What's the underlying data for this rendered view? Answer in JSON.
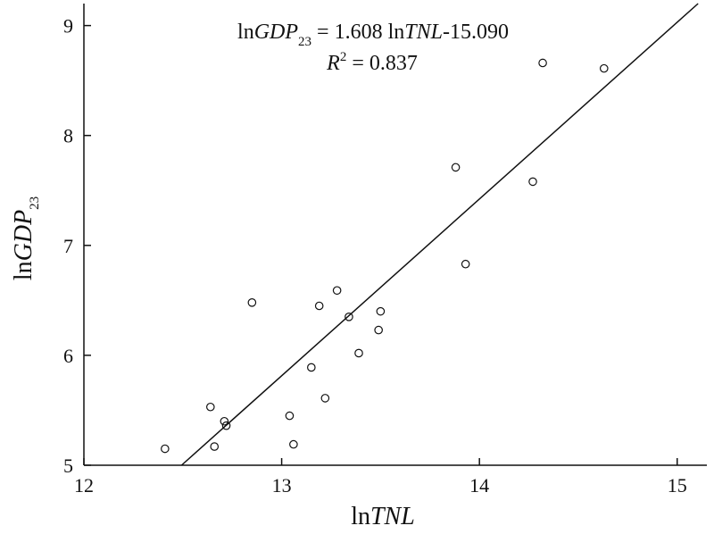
{
  "chart_data": {
    "type": "scatter",
    "xlim": [
      12,
      15.15
    ],
    "ylim": [
      5,
      9.2
    ],
    "x_ticks": [
      "12",
      "13",
      "14",
      "15"
    ],
    "y_ticks": [
      "5",
      "6",
      "7",
      "8",
      "9"
    ],
    "xlabel": {
      "prefix": "ln",
      "var": "TNL"
    },
    "ylabel": {
      "prefix": "ln",
      "var": "GDP",
      "sub": "23"
    },
    "equation": {
      "prefix": "ln",
      "var": "GDP",
      "sub": "23",
      "rhs_a": " = 1.608 ln",
      "rhs_var": "TNL",
      "rhs_b": "-15.090"
    },
    "r2": {
      "var": "R",
      "exp": "2",
      "rest": " = 0.837"
    },
    "regression": {
      "slope": 1.608,
      "intercept": -15.09
    },
    "points": [
      {
        "x": 12.41,
        "y": 5.15
      },
      {
        "x": 12.64,
        "y": 5.53
      },
      {
        "x": 12.66,
        "y": 5.17
      },
      {
        "x": 12.71,
        "y": 5.4
      },
      {
        "x": 12.72,
        "y": 5.36
      },
      {
        "x": 12.85,
        "y": 6.48
      },
      {
        "x": 13.04,
        "y": 5.45
      },
      {
        "x": 13.06,
        "y": 5.19
      },
      {
        "x": 13.15,
        "y": 5.89
      },
      {
        "x": 13.19,
        "y": 6.45
      },
      {
        "x": 13.22,
        "y": 5.61
      },
      {
        "x": 13.28,
        "y": 6.59
      },
      {
        "x": 13.34,
        "y": 6.35
      },
      {
        "x": 13.39,
        "y": 6.02
      },
      {
        "x": 13.49,
        "y": 6.23
      },
      {
        "x": 13.5,
        "y": 6.4
      },
      {
        "x": 13.88,
        "y": 7.71
      },
      {
        "x": 13.93,
        "y": 6.83
      },
      {
        "x": 14.27,
        "y": 7.58
      },
      {
        "x": 14.32,
        "y": 8.66
      },
      {
        "x": 14.63,
        "y": 8.61
      }
    ]
  },
  "colors": {
    "axis": "#111111",
    "line": "#111111",
    "marker": "#111111"
  }
}
